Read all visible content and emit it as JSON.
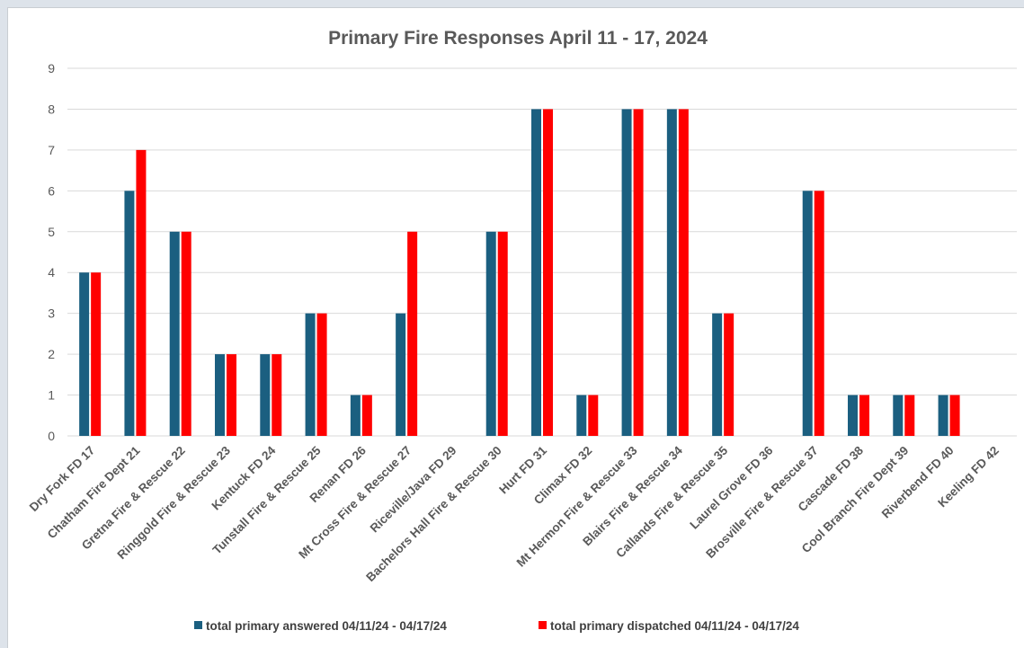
{
  "chart_data": {
    "type": "bar",
    "title": "Primary Fire Responses April 11 - 17, 2024",
    "xlabel": "",
    "ylabel": "",
    "ylim": [
      0,
      9
    ],
    "yticks": [
      "0",
      "1",
      "2",
      "3",
      "4",
      "5",
      "6",
      "7",
      "8",
      "9"
    ],
    "grid": true,
    "legend_position": "bottom",
    "categories": [
      "Dry Fork FD  17",
      "Chatham Fire Dept 21",
      "Gretna Fire & Rescue 22",
      "Ringgold Fire & Rescue 23",
      "Kentuck FD 24",
      "Tunstall Fire & Rescue 25",
      "Renan FD 26",
      "Mt Cross Fire & Rescue 27",
      "Riceville/Java FD 29",
      "Bachelors Hall Fire & Rescue 30",
      "Hurt FD 31",
      "Climax FD  32",
      "Mt Hermon Fire & Rescue 33",
      "Blairs Fire & Rescue 34",
      "Callands Fire & Rescue 35",
      "Laurel Grove FD 36",
      "Brosville Fire & Rescue 37",
      "Cascade FD 38",
      "Cool Branch Fire Dept 39",
      "Riverbend FD 40",
      "Keeling FD 42"
    ],
    "series": [
      {
        "name": "total primary answered 04/11/24 - 04/17/24",
        "color": "#1b5f80",
        "values": [
          4,
          6,
          5,
          2,
          2,
          3,
          1,
          3,
          0,
          5,
          8,
          1,
          8,
          8,
          3,
          0,
          6,
          1,
          1,
          1,
          0
        ]
      },
      {
        "name": "total primary dispatched 04/11/24 - 04/17/24",
        "color": "#ff0000",
        "values": [
          4,
          7,
          5,
          2,
          2,
          3,
          1,
          5,
          0,
          5,
          8,
          1,
          8,
          8,
          3,
          0,
          6,
          1,
          1,
          1,
          0
        ]
      }
    ]
  }
}
